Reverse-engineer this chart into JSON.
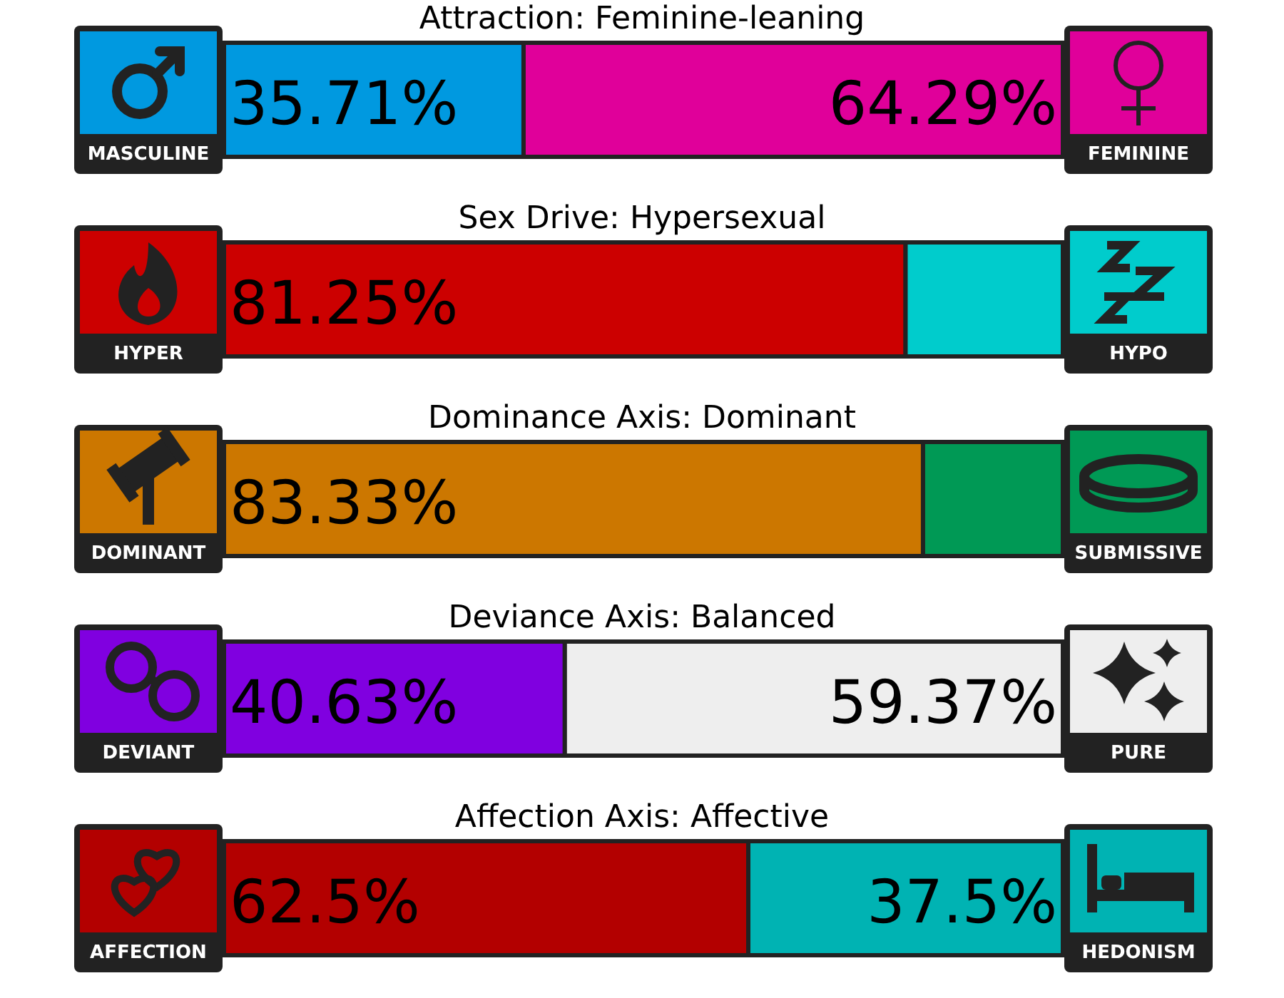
{
  "chart_data": [
    {
      "type": "bar",
      "orientation": "horizontal",
      "stacked": true,
      "title": "Attraction: Feminine-leaning",
      "categories": [
        null
      ],
      "series": [
        {
          "name": "MASCULINE",
          "color": "#0099e0",
          "values": [
            35.71
          ],
          "value_labels": [
            "35.71%"
          ]
        },
        {
          "name": "FEMININE",
          "color": "#e0009a",
          "values": [
            64.29
          ],
          "value_labels": [
            "64.29%"
          ]
        }
      ]
    },
    {
      "type": "bar",
      "orientation": "horizontal",
      "stacked": true,
      "title": "Sex Drive: Hypersexual",
      "categories": [
        null
      ],
      "series": [
        {
          "name": "HYPER",
          "color": "#cc0000",
          "values": [
            81.25
          ],
          "value_labels": [
            "81.25%"
          ]
        },
        {
          "name": "HYPO",
          "color": "#00cccc",
          "values": [
            18.75
          ],
          "value_labels": [
            null
          ]
        }
      ]
    },
    {
      "type": "bar",
      "orientation": "horizontal",
      "stacked": true,
      "title": "Dominance Axis: Dominant",
      "categories": [
        null
      ],
      "series": [
        {
          "name": "DOMINANT",
          "color": "#cc7700",
          "values": [
            83.33
          ],
          "value_labels": [
            "83.33%"
          ]
        },
        {
          "name": "SUBMISSIVE",
          "color": "#009955",
          "values": [
            16.67
          ],
          "value_labels": [
            null
          ]
        }
      ]
    },
    {
      "type": "bar",
      "orientation": "horizontal",
      "stacked": true,
      "title": "Deviance Axis: Balanced",
      "categories": [
        null
      ],
      "series": [
        {
          "name": "DEVIANT",
          "color": "#8000e0",
          "values": [
            40.63
          ],
          "value_labels": [
            "40.63%"
          ]
        },
        {
          "name": "PURE",
          "color": "#eeeeee",
          "values": [
            59.37
          ],
          "value_labels": [
            "59.37%"
          ]
        }
      ]
    },
    {
      "type": "bar",
      "orientation": "horizontal",
      "stacked": true,
      "title": "Affection Axis: Affective",
      "categories": [
        null
      ],
      "series": [
        {
          "name": "AFFECTION",
          "color": "#b30000",
          "values": [
            62.5
          ],
          "value_labels": [
            "62.5%"
          ]
        },
        {
          "name": "HEDONISM",
          "color": "#00b3b3",
          "values": [
            37.5
          ],
          "value_labels": [
            "37.5%"
          ]
        }
      ]
    }
  ]
}
